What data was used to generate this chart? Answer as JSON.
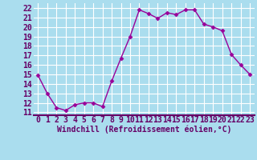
{
  "x": [
    0,
    1,
    2,
    3,
    4,
    5,
    6,
    7,
    8,
    9,
    10,
    11,
    12,
    13,
    14,
    15,
    16,
    17,
    18,
    19,
    20,
    21,
    22,
    23
  ],
  "y": [
    14.9,
    13.0,
    11.5,
    11.2,
    11.8,
    12.0,
    12.0,
    11.6,
    14.3,
    16.7,
    19.0,
    21.8,
    21.4,
    20.9,
    21.5,
    21.3,
    21.8,
    21.8,
    20.3,
    20.0,
    19.6,
    17.1,
    16.0,
    15.0
  ],
  "line_color": "#990099",
  "marker": "D",
  "marker_size": 2.5,
  "bg_color": "#aaddee",
  "grid_color": "#ffffff",
  "xlabel": "Windchill (Refroidissement éolien,°C)",
  "ylabel_ticks": [
    11,
    12,
    13,
    14,
    15,
    16,
    17,
    18,
    19,
    20,
    21,
    22
  ],
  "xlim": [
    -0.5,
    23.5
  ],
  "ylim": [
    10.7,
    22.5
  ],
  "xlabel_fontsize": 7,
  "tick_fontsize": 7,
  "line_width": 1.0
}
